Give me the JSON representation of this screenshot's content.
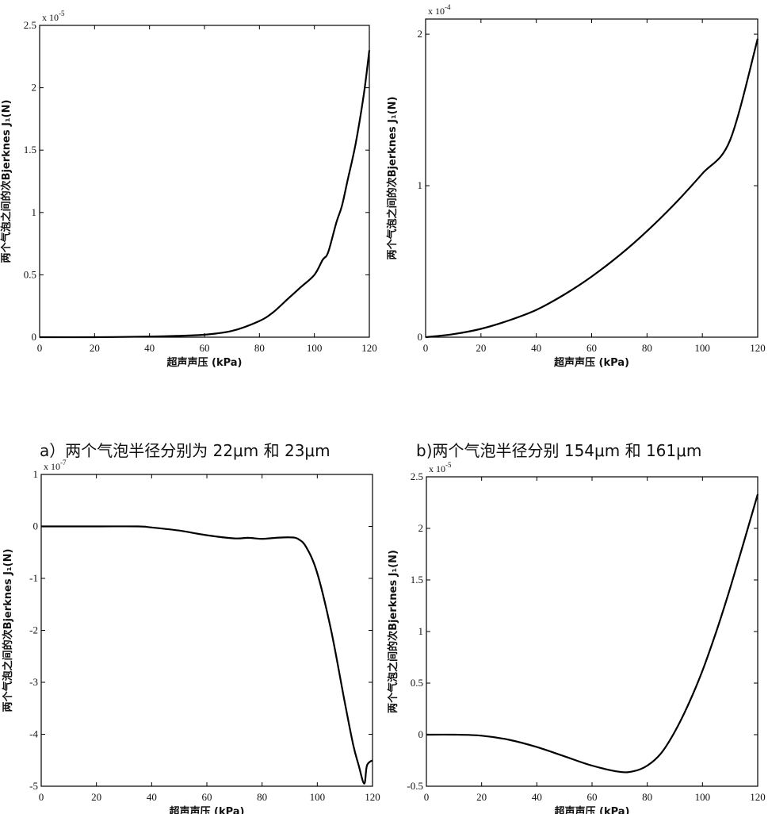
{
  "figure": {
    "captions": [
      "a）两个气泡半径分别为 22μm 和 23μm",
      "b)两个气泡半径分别 154μm 和 161μm"
    ]
  },
  "chart_data": [
    {
      "type": "line",
      "xlabel": "超声声压 (kPa)",
      "ylabel": "两个气泡之间的次Bjerknes J₁(N)",
      "x_ticks": [
        "0",
        "20",
        "40",
        "60",
        "80",
        "100",
        "120"
      ],
      "y_ticks": [
        "0",
        "0.5",
        "1",
        "1.5",
        "2",
        "2.5"
      ],
      "y_multiplier": "x 10",
      "y_multiplier_exp": "-5",
      "xlim": [
        0,
        120
      ],
      "ylim": [
        0,
        2.5
      ],
      "x": [
        0,
        20,
        40,
        50,
        60,
        70,
        80,
        85,
        90,
        95,
        100,
        103,
        105,
        108,
        110,
        112,
        115,
        118,
        120
      ],
      "y": [
        0,
        0,
        0.005,
        0.01,
        0.02,
        0.05,
        0.13,
        0.2,
        0.3,
        0.4,
        0.5,
        0.62,
        0.68,
        0.92,
        1.05,
        1.25,
        1.55,
        1.95,
        2.3
      ]
    },
    {
      "type": "line",
      "xlabel": "超声声压 (kPa)",
      "ylabel": "两个气泡之间的次Bjerknes J₁(N)",
      "x_ticks": [
        "0",
        "20",
        "40",
        "60",
        "80",
        "100",
        "120"
      ],
      "y_ticks": [
        "0",
        "1",
        "2"
      ],
      "y_multiplier": "x 10",
      "y_multiplier_exp": "-4",
      "xlim": [
        0,
        120
      ],
      "ylim": [
        0,
        2.1
      ],
      "x": [
        0,
        10,
        20,
        30,
        40,
        50,
        60,
        70,
        80,
        90,
        100,
        110,
        120
      ],
      "y": [
        0,
        0.02,
        0.055,
        0.11,
        0.18,
        0.28,
        0.4,
        0.54,
        0.7,
        0.88,
        1.08,
        1.3,
        1.97
      ]
    },
    {
      "type": "line",
      "xlabel": "超声声压 (kPa)",
      "ylabel": "两个气泡之间的次Bjerknes J₁(N)",
      "x_ticks": [
        "0",
        "20",
        "40",
        "60",
        "80",
        "100",
        "120"
      ],
      "y_ticks": [
        "1",
        "0",
        "-1",
        "-2",
        "-3",
        "-4",
        "-5"
      ],
      "y_multiplier": "x 10",
      "y_multiplier_exp": "-7",
      "xlim": [
        0,
        120
      ],
      "ylim": [
        -5,
        1
      ],
      "x": [
        0,
        20,
        35,
        40,
        50,
        60,
        70,
        75,
        80,
        85,
        90,
        93,
        96,
        100,
        105,
        110,
        113,
        115,
        117,
        118,
        120
      ],
      "y": [
        0,
        0,
        0,
        -0.02,
        -0.08,
        -0.17,
        -0.23,
        -0.22,
        -0.24,
        -0.22,
        -0.21,
        -0.24,
        -0.4,
        -0.9,
        -2.0,
        -3.4,
        -4.2,
        -4.6,
        -4.95,
        -4.6,
        -4.5
      ]
    },
    {
      "type": "line",
      "xlabel": "超声声压 (kPa)",
      "ylabel": "两个气泡之间的次Bjerknes J₁(N)",
      "x_ticks": [
        "0",
        "20",
        "40",
        "60",
        "80",
        "100",
        "120"
      ],
      "y_ticks": [
        "2.5",
        "2",
        "1.5",
        "1",
        "0.5",
        "0",
        "-0.5"
      ],
      "y_multiplier": "x 10",
      "y_multiplier_exp": "-5",
      "xlim": [
        0,
        120
      ],
      "ylim": [
        -0.5,
        2.5
      ],
      "x": [
        0,
        10,
        20,
        30,
        40,
        50,
        60,
        70,
        75,
        80,
        85,
        90,
        95,
        100,
        105,
        110,
        115,
        120
      ],
      "y": [
        0,
        0,
        -0.01,
        -0.05,
        -0.12,
        -0.21,
        -0.3,
        -0.36,
        -0.355,
        -0.3,
        -0.18,
        0.03,
        0.3,
        0.62,
        1.0,
        1.42,
        1.87,
        2.33
      ]
    }
  ]
}
